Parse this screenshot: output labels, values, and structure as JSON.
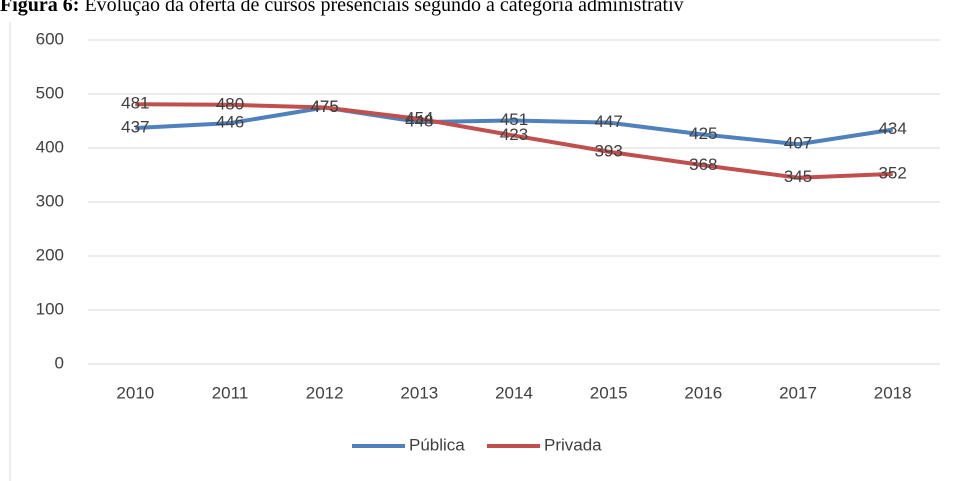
{
  "chart_data": {
    "type": "line",
    "label": "Figura 6:",
    "title": "Evolução da oferta de cursos presenciais segundo a categoria administrativ",
    "categories": [
      "2010",
      "2011",
      "2012",
      "2013",
      "2014",
      "2015",
      "2016",
      "2017",
      "2018"
    ],
    "series": [
      {
        "name": "Pública",
        "color": "#4f81bd",
        "values": [
          437,
          446,
          475,
          448,
          451,
          447,
          425,
          407,
          434
        ]
      },
      {
        "name": "Privada",
        "color": "#c0504d",
        "values": [
          481,
          480,
          475,
          454,
          423,
          393,
          368,
          345,
          352
        ]
      }
    ],
    "ylim": [
      0,
      600
    ],
    "yticks": [
      0,
      100,
      200,
      300,
      400,
      500,
      600
    ],
    "grid": true,
    "legend": "bottom"
  }
}
